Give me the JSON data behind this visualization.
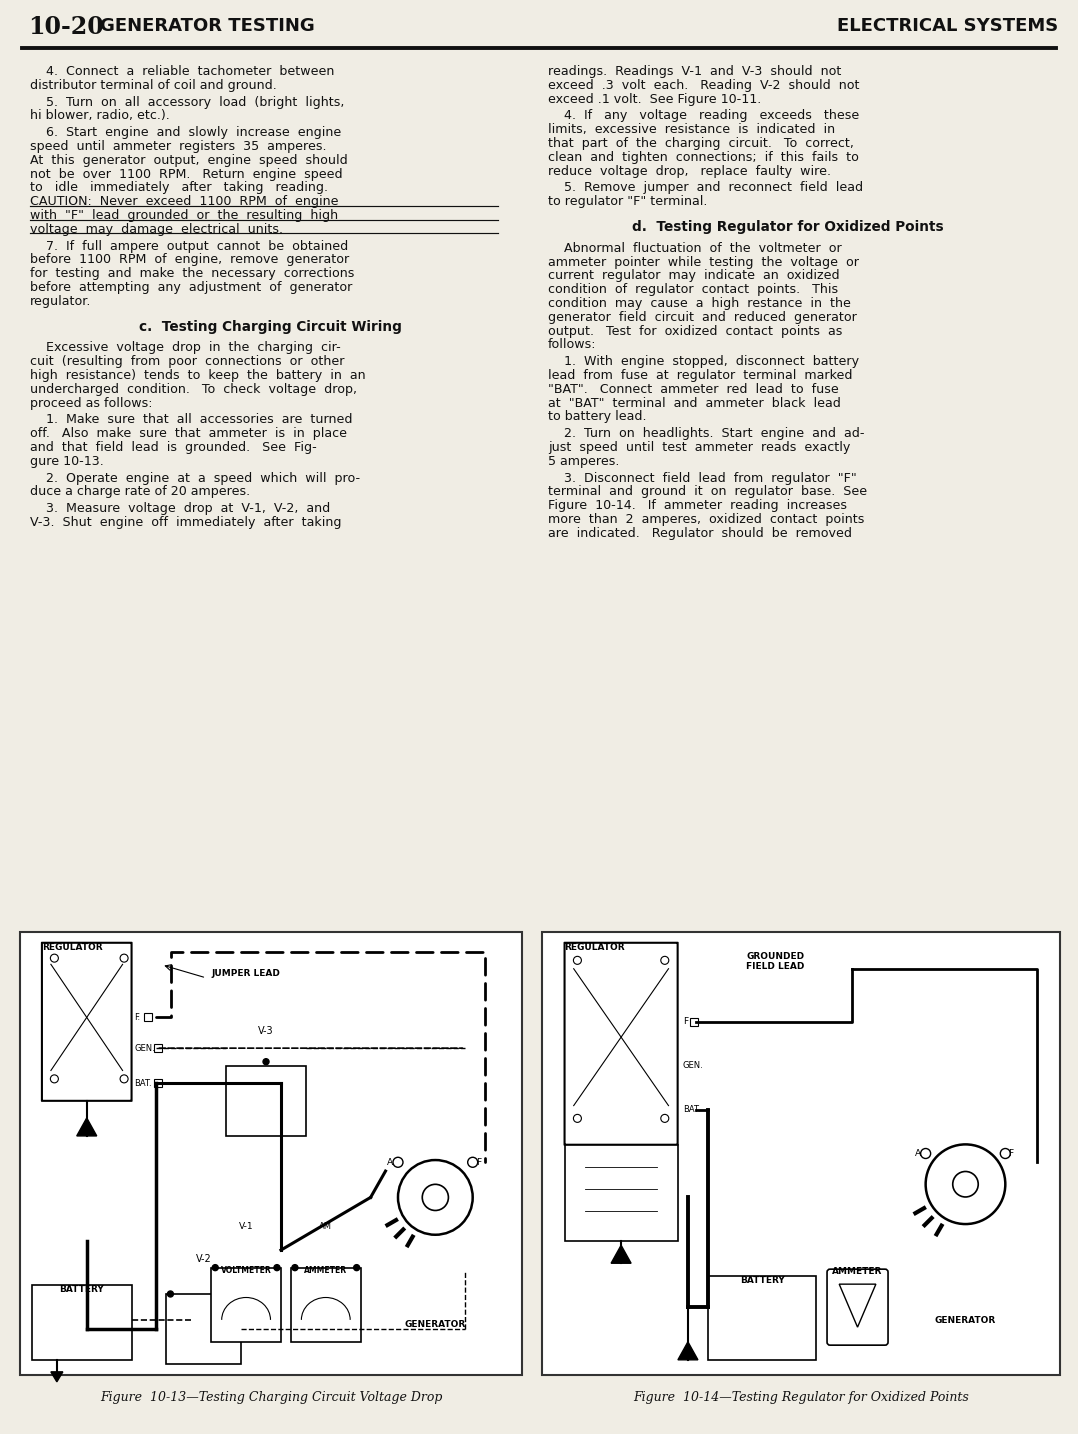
{
  "page_num": "10-20",
  "left_header": "GENERATOR TESTING",
  "right_header": "ELECTRICAL SYSTEMS",
  "bg_color": "#f0ede4",
  "text_color": "#111111",
  "fig1_caption": "Figure  10-13—Testing Charging Circuit Voltage Drop",
  "fig2_caption": "Figure  10-14—Testing Regulator for Oxidized Points",
  "col1": [
    [
      "p",
      "    4.  Connect  a  reliable  tachometer  between\ndistributor terminal of coil and ground."
    ],
    [
      "p",
      "    5.  Turn  on  all  accessory  load  (bright  lights,\nhi blower, radio, etc.)."
    ],
    [
      "p",
      "    6.  Start  engine  and  slowly  increase  engine\nspeed  until  ammeter  registers  35  amperes.\nAt  this  generator  output,  engine  speed  should\nnot  be  over  1100  RPM.   Return  engine  speed\nto   idle   immediately   after   taking   reading.\nCAUTION:  Never  exceed  1100  RPM  of  engine\nwith  \"F\"  lead  grounded  or  the  resulting  high\nvoltage  may  damage  electrical  units."
    ],
    [
      "ul_start",
      5
    ],
    [
      "p",
      "    7.  If  full  ampere  output  cannot  be  obtained\nbefore  1100  RPM  of  engine,  remove  generator\nfor  testing  and  make  the  necessary  corrections\nbefore  attempting  any  adjustment  of  generator\nregulator."
    ],
    [
      "h",
      "c.  Testing Charging Circuit Wiring"
    ],
    [
      "p",
      "    Excessive  voltage  drop  in  the  charging  cir-\ncuit  (resulting  from  poor  connections  or  other\nhigh  resistance)  tends  to  keep  the  battery  in  an\nundercharged  condition.   To  check  voltage  drop,\nproceed as follows:"
    ],
    [
      "p",
      "    1.  Make  sure  that  all  accessories  are  turned\noff.   Also  make  sure  that  ammeter  is  in  place\nand  that  field  lead  is  grounded.   See  Fig-\ngure 10-13."
    ],
    [
      "p",
      "    2.  Operate  engine  at  a  speed  which  will  pro-\nduce a charge rate of 20 amperes."
    ],
    [
      "p",
      "    3.  Measure  voltage  drop  at  V-1,  V-2,  and\nV-3.  Shut  engine  off  immediately  after  taking"
    ]
  ],
  "col2": [
    [
      "p",
      "readings.  Readings  V-1  and  V-3  should  not\nexceed  .3  volt  each.   Reading  V-2  should  not\nexceed .1 volt.  See Figure 10-11."
    ],
    [
      "p",
      "    4.  If   any   voltage   reading   exceeds   these\nlimits,  excessive  resistance  is  indicated  in\nthat  part  of  the  charging  circuit.   To  correct,\nclean  and  tighten  connections;  if  this  fails  to\nreduce  voltage  drop,   replace  faulty  wire."
    ],
    [
      "p",
      "    5.  Remove  jumper  and  reconnect  field  lead\nto regulator \"F\" terminal."
    ],
    [
      "h",
      "d.  Testing Regulator for Oxidized Points"
    ],
    [
      "p",
      "    Abnormal  fluctuation  of  the  voltmeter  or\nammeter  pointer  while  testing  the  voltage  or\ncurrent  regulator  may  indicate  an  oxidized\ncondition  of  regulator  contact  points.   This\ncondition  may  cause  a  high  restance  in  the\ngenerator  field  circuit  and  reduced  generator\noutput.   Test  for  oxidized  contact  points  as\nfollows:"
    ],
    [
      "p",
      "    1.  With  engine  stopped,  disconnect  battery\nlead  from  fuse  at  regulator  terminal  marked\n\"BAT\".   Connect  ammeter  red  lead  to  fuse\nat  \"BAT\"  terminal  and  ammeter  black  lead\nto battery lead."
    ],
    [
      "p",
      "    2.  Turn  on  headlights.  Start  engine  and  ad-\njust  speed  until  test  ammeter  reads  exactly\n5 amperes."
    ],
    [
      "p",
      "    3.  Disconnect  field  lead  from  regulator  \"F\"\nterminal  and  ground  it  on  regulator  base.  See\nFigure  10-14.   If  ammeter  reading  increases\nmore  than  2  amperes,  oxidized  contact  points\nare  indicated.   Regulator  should  be  removed"
    ]
  ]
}
